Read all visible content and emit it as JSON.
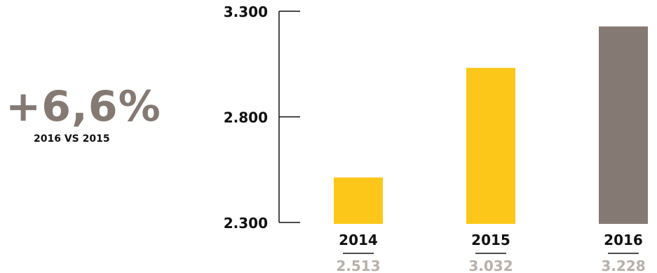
{
  "kpi": {
    "value": "+6,6%",
    "caption": "2016 VS 2015"
  },
  "colors": {
    "highlight_bar": "#fcc719",
    "current_bar": "#857a73",
    "kpi_text": "#857a73",
    "value_label": "#b8b0aa",
    "axis": "#111111"
  },
  "chart_data": {
    "type": "bar",
    "categories": [
      "2014",
      "2015",
      "2016"
    ],
    "values": [
      2513,
      3032,
      3228
    ],
    "value_labels": [
      "2.513",
      "3.032",
      "3.228"
    ],
    "bar_colors": [
      "#fcc719",
      "#fcc719",
      "#857a73"
    ],
    "ylim": [
      2300,
      3300
    ],
    "yticks": [
      2300,
      2800,
      3300
    ],
    "ytick_labels": [
      "2.300",
      "2.800",
      "3.300"
    ],
    "grid": false,
    "title": "",
    "xlabel": "",
    "ylabel": ""
  }
}
